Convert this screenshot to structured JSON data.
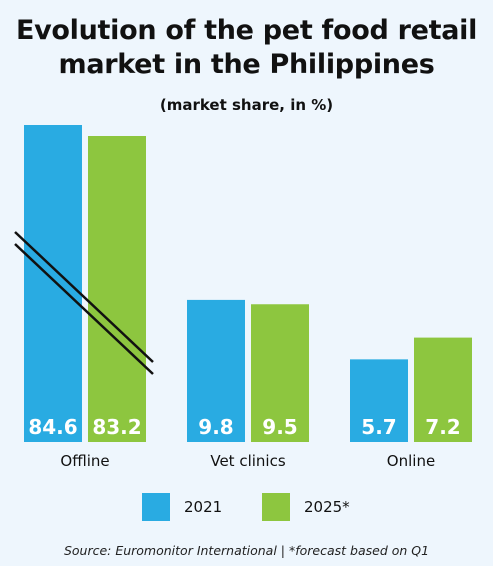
{
  "title_line1": "Evolution of the pet food retail",
  "title_line2": "market in the Philippines",
  "subtitle": "(market share, in %)",
  "source": "Source: Euromonitor International  |  *forecast based on Q1",
  "colors": {
    "series_2021": "#29abe2",
    "series_2025": "#8dc63f",
    "value_label": "#ffffff",
    "background": "#eef6fd"
  },
  "chart_data": {
    "type": "bar",
    "categories": [
      "Offline",
      "Vet clinics",
      "Online"
    ],
    "series": [
      {
        "name": "2021",
        "values": [
          84.6,
          9.8,
          5.7
        ]
      },
      {
        "name": "2025*",
        "values": [
          83.2,
          9.5,
          7.2
        ]
      }
    ],
    "value_labels": [
      [
        "84.6",
        "9.8",
        "5.7"
      ],
      [
        "83.2",
        "9.5",
        "7.2"
      ]
    ],
    "title": "Evolution of the pet food retail market in the Philippines",
    "subtitle": "(market share, in %)",
    "axis_break": {
      "category": "Offline"
    },
    "grid": false,
    "legend": "bottom"
  }
}
